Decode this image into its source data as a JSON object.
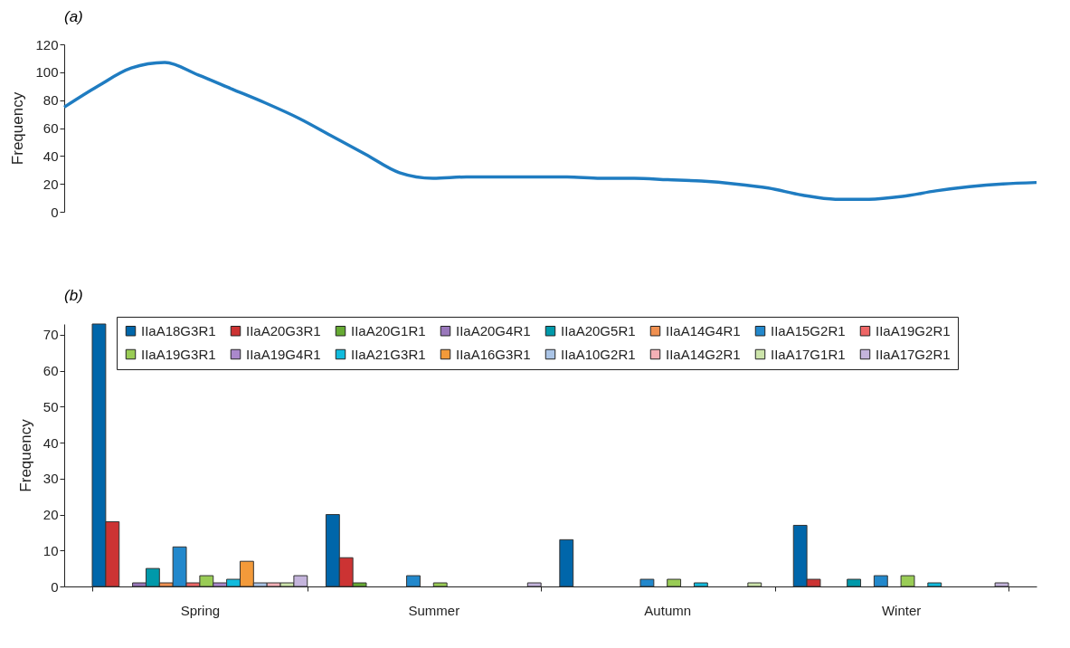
{
  "chart_data": [
    {
      "type": "line",
      "title": "(a)",
      "ylabel": "Frequency",
      "categories": [
        null,
        null,
        null,
        null,
        null,
        null,
        null,
        null,
        null,
        null,
        null,
        null,
        null,
        null,
        null,
        null,
        null,
        null,
        null,
        null,
        null,
        null,
        null,
        null,
        null,
        null,
        null,
        null,
        null,
        null
      ],
      "series": [
        {
          "color": "#1f7cc1",
          "values": [
            75,
            90,
            103,
            107,
            98,
            88,
            78,
            67,
            54,
            41,
            28,
            24,
            25,
            25,
            25,
            25,
            24,
            24,
            23,
            22,
            20,
            17,
            12,
            9,
            9,
            11,
            15,
            18,
            20,
            21
          ]
        }
      ],
      "ylim": [
        0,
        120
      ],
      "yticks": [
        0,
        20,
        40,
        60,
        80,
        100,
        120
      ],
      "tick_labels": "y",
      "grid": false,
      "legend": false,
      "marker": "none",
      "line_style": "solid"
    },
    {
      "type": "bar",
      "title": "(b)",
      "ylabel": "Frequency",
      "categories": [
        "Spring",
        "Summer",
        "Autumn",
        "Winter"
      ],
      "series": [
        {
          "name": "IIaA18G3R1",
          "color": "#0066aa",
          "values": [
            73,
            20,
            13,
            17
          ]
        },
        {
          "name": "IIaA20G3R1",
          "color": "#cc3333",
          "values": [
            18,
            8,
            null,
            2
          ]
        },
        {
          "name": "IIaA20G1R1",
          "color": "#66aa33",
          "values": [
            null,
            1,
            null,
            null
          ]
        },
        {
          "name": "IIaA20G4R1",
          "color": "#9977bb",
          "values": [
            1,
            null,
            null,
            null
          ]
        },
        {
          "name": "IIaA20G5R1",
          "color": "#0099aa",
          "values": [
            5,
            null,
            null,
            2
          ]
        },
        {
          "name": "IIaA14G4R1",
          "color": "#f09050",
          "values": [
            1,
            null,
            null,
            null
          ]
        },
        {
          "name": "IIaA15G2R1",
          "color": "#2288cc",
          "values": [
            11,
            3,
            2,
            3
          ]
        },
        {
          "name": "IIaA19G2R1",
          "color": "#ee6666",
          "values": [
            1,
            null,
            null,
            null
          ]
        },
        {
          "name": "IIaA19G3R1",
          "color": "#99cc55",
          "values": [
            3,
            1,
            2,
            3
          ]
        },
        {
          "name": "IIaA19G4R1",
          "color": "#aa88cc",
          "values": [
            1,
            null,
            null,
            null
          ]
        },
        {
          "name": "IIaA21G3R1",
          "color": "#11bbdd",
          "values": [
            2,
            null,
            1,
            1
          ]
        },
        {
          "name": "IIaA16G3R1",
          "color": "#f39a3a",
          "values": [
            7,
            null,
            null,
            null
          ]
        },
        {
          "name": "IIaA10G2R1",
          "color": "#aac4e6",
          "values": [
            1,
            null,
            null,
            null
          ]
        },
        {
          "name": "IIaA14G2R1",
          "color": "#f4b0b6",
          "values": [
            1,
            null,
            null,
            null
          ]
        },
        {
          "name": "IIaA17G1R1",
          "color": "#cce4aa",
          "values": [
            1,
            null,
            1,
            null
          ]
        },
        {
          "name": "IIaA17G2R1",
          "color": "#c4b4dc",
          "values": [
            3,
            1,
            null,
            1
          ]
        }
      ],
      "ylim": [
        0,
        73
      ],
      "yticks": [
        0,
        10,
        20,
        30,
        40,
        50,
        60,
        70
      ],
      "grid": false,
      "legend": "top"
    }
  ]
}
